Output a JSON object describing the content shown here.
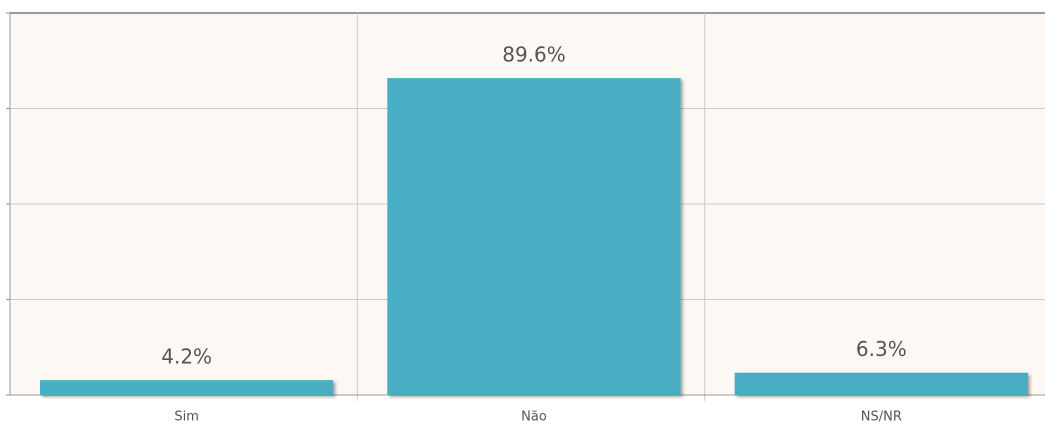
{
  "chart_data": {
    "type": "bar",
    "categories": [
      "Sim",
      "Não",
      "NS/NR"
    ],
    "values": [
      4.2,
      89.6,
      6.3
    ],
    "value_labels": [
      "4.2%",
      "89.6%",
      "6.3%"
    ],
    "color": "#4aaec4",
    "ylim": [
      0,
      108
    ],
    "yticks": [
      0,
      27,
      54,
      81,
      108
    ],
    "grid": true
  }
}
